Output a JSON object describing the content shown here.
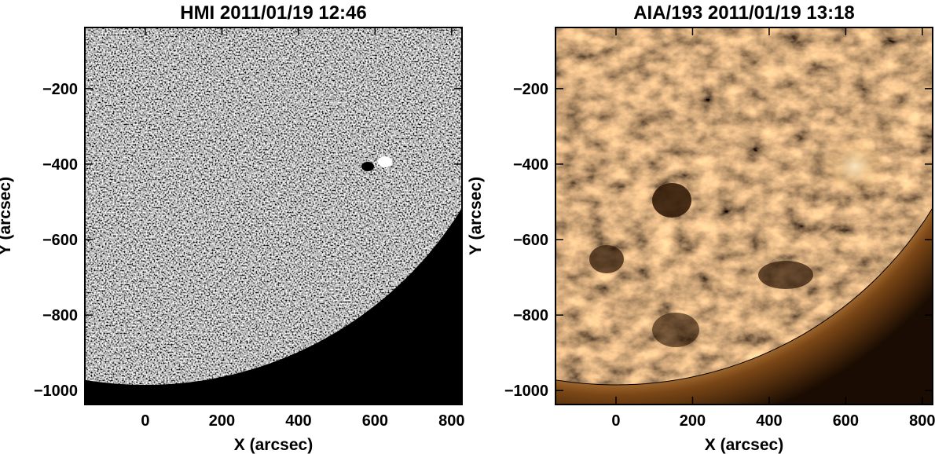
{
  "chart_data": [
    {
      "type": "heatmap",
      "title": "HMI 2011/01/19 12:46",
      "xlabel": "X (arcsec)",
      "ylabel": "Y (arcsec)",
      "xlim": [
        -158,
        827
      ],
      "ylim": [
        -1037,
        -38
      ],
      "xticks": [
        0,
        200,
        400,
        600,
        800
      ],
      "yticks": [
        -200,
        -400,
        -600,
        -800,
        -1000
      ],
      "colormap": "gray",
      "colors": {
        "background": "#000000",
        "disk": "#808080"
      }
    },
    {
      "type": "heatmap",
      "title": "AIA/193 2011/01/19 13:18",
      "xlabel": "X (arcsec)",
      "ylabel": "Y (arcsec)",
      "xlim": [
        -158,
        827
      ],
      "ylim": [
        -1037,
        -38
      ],
      "xticks": [
        0,
        200,
        400,
        600,
        800
      ],
      "yticks": [
        -200,
        -400,
        -600,
        -800,
        -1000
      ],
      "colormap": "sdoaia193",
      "colors": {
        "background": "#1a0c02",
        "disk": "#a8672a",
        "bright": "#f3d6a3"
      }
    }
  ]
}
